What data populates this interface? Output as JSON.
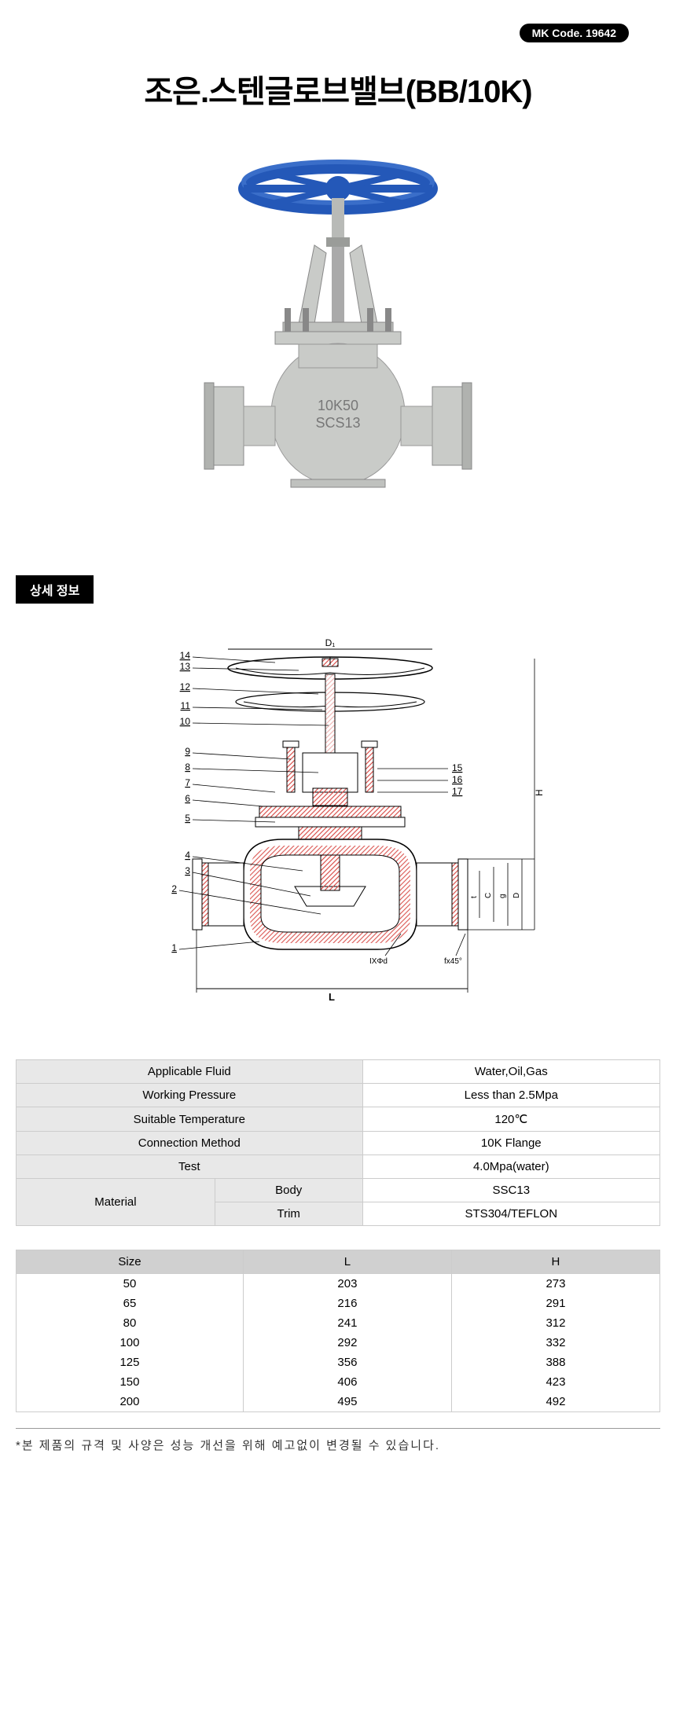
{
  "header": {
    "mk_code_label": "MK Code. 19642",
    "title": "조은.스텐글로브밸브(BB/10K)"
  },
  "product_image": {
    "valve_body_color": "#c9cbc8",
    "handwheel_color": "#2458b8",
    "body_text_1": "10K50",
    "body_text_2": "SCS13"
  },
  "section_detail_label": "상세 정보",
  "diagram": {
    "part_numbers_left": [
      "14",
      "13",
      "12",
      "11",
      "10",
      "9",
      "8",
      "7",
      "6",
      "5",
      "4",
      "3",
      "2",
      "1"
    ],
    "part_numbers_right": [
      "15",
      "16",
      "17"
    ],
    "dim_D": "D",
    "dim_g": "g",
    "dim_L": "L",
    "dim_t": "t",
    "dim_C": "C",
    "dim_d": "IXΦd",
    "dim_f": "fx45°",
    "crosshatch_color": "#d9534f"
  },
  "spec_table": {
    "rows": [
      {
        "label": "Applicable Fluid",
        "value": "Water,Oil,Gas"
      },
      {
        "label": "Working Pressure",
        "value": "Less than 2.5Mpa"
      },
      {
        "label": "Suitable Temperature",
        "value": "120℃"
      },
      {
        "label": "Connection Method",
        "value": "10K Flange"
      },
      {
        "label": "Test",
        "value": "4.0Mpa(water)"
      }
    ],
    "material": {
      "label": "Material",
      "body_label": "Body",
      "body_value": "SSC13",
      "trim_label": "Trim",
      "trim_value": "STS304/TEFLON"
    },
    "label_bg": "#e8e8e8"
  },
  "size_table": {
    "columns": [
      "Size",
      "L",
      "H"
    ],
    "rows": [
      [
        "50",
        "203",
        "273"
      ],
      [
        "65",
        "216",
        "291"
      ],
      [
        "80",
        "241",
        "312"
      ],
      [
        "100",
        "292",
        "332"
      ],
      [
        "125",
        "356",
        "388"
      ],
      [
        "150",
        "406",
        "423"
      ],
      [
        "200",
        "495",
        "492"
      ]
    ],
    "header_bg": "#d0d0d0"
  },
  "footnote": "*본 제품의 규격 및 사양은 성능 개선을 위해 예고없이 변경될 수 있습니다."
}
